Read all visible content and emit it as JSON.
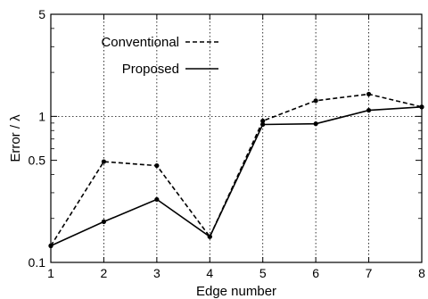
{
  "chart_data": {
    "type": "line",
    "title": "",
    "xlabel": "Edge number",
    "ylabel": "Error / λ",
    "y_scale": "log",
    "xlim": [
      1,
      8
    ],
    "ylim": [
      0.1,
      5
    ],
    "x_ticks": [
      1,
      2,
      3,
      4,
      5,
      6,
      7,
      8
    ],
    "x_tick_labels": [
      "1",
      "2",
      "3",
      "4",
      "5",
      "6",
      "7",
      "8"
    ],
    "y_ticks": [
      0.1,
      0.5,
      1,
      5
    ],
    "y_tick_labels": [
      "0.1",
      "0.5",
      "1",
      "5"
    ],
    "grid": "vertical dotted lines at each edge number; horizontal dotted reference line at 1",
    "reference_line_y": 1,
    "legend_position": "top-left",
    "x": [
      1,
      2,
      3,
      4,
      5,
      6,
      7,
      8
    ],
    "series": [
      {
        "name": "Conventional",
        "line_style": "dashed",
        "values": [
          0.13,
          0.49,
          0.46,
          0.15,
          0.93,
          1.28,
          1.42,
          1.16
        ]
      },
      {
        "name": "Proposed",
        "line_style": "solid",
        "values": [
          0.13,
          0.19,
          0.27,
          0.15,
          0.88,
          0.89,
          1.1,
          1.16
        ]
      }
    ],
    "color": "#000000"
  }
}
